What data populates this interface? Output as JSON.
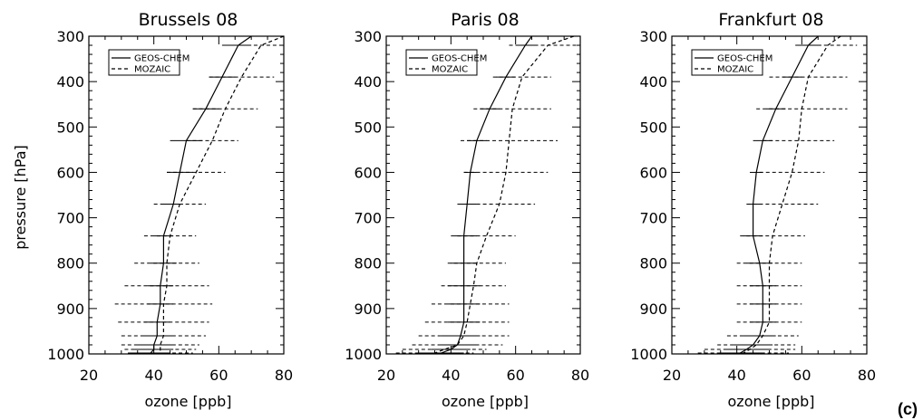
{
  "figure": {
    "panel_letter": "(c)",
    "ylabel": "pressure [hPa]",
    "xlabel": "ozone [ppb]"
  },
  "chart_data": [
    {
      "type": "line",
      "title": "Brussels   08",
      "xlabel": "ozone [ppb]",
      "ylabel": "pressure [hPa]",
      "xlim": [
        20,
        80
      ],
      "ylim": [
        1000,
        300
      ],
      "x_ticks": [
        20,
        40,
        60,
        80
      ],
      "y_ticks": [
        300,
        400,
        500,
        600,
        700,
        800,
        900,
        1000
      ],
      "legend_position": "top-left",
      "series": [
        {
          "name": "GEOS-CHEM",
          "style": "solid",
          "points": [
            [
              70,
              300
            ],
            [
              66,
              320
            ],
            [
              61,
              390
            ],
            [
              56,
              460
            ],
            [
              50,
              530
            ],
            [
              48,
              600
            ],
            [
              46,
              670
            ],
            [
              43,
              740
            ],
            [
              43,
              800
            ],
            [
              42,
              850
            ],
            [
              42,
              890
            ],
            [
              41,
              930
            ],
            [
              41,
              960
            ],
            [
              40,
              980
            ],
            [
              40,
              990
            ],
            [
              39,
              998
            ]
          ],
          "err_half_width": [
            5,
            4,
            4,
            4,
            5,
            4,
            3,
            3,
            4,
            4,
            4,
            4,
            5,
            6,
            6,
            6
          ]
        },
        {
          "name": "MOZAIC",
          "style": "dashed",
          "points": [
            [
              80,
              300
            ],
            [
              73,
              320
            ],
            [
              67,
              390
            ],
            [
              62,
              460
            ],
            [
              58,
              530
            ],
            [
              53,
              600
            ],
            [
              48,
              670
            ],
            [
              45,
              740
            ],
            [
              44,
              800
            ],
            [
              44,
              850
            ],
            [
              43,
              890
            ],
            [
              43,
              930
            ],
            [
              43,
              960
            ],
            [
              42,
              980
            ],
            [
              42,
              990
            ],
            [
              42,
              998
            ]
          ],
          "err_half_width": [
            8,
            12,
            10,
            10,
            8,
            9,
            8,
            8,
            10,
            13,
            15,
            14,
            13,
            12,
            11,
            10
          ]
        }
      ]
    },
    {
      "type": "line",
      "title": "Paris   08",
      "xlabel": "ozone [ppb]",
      "ylabel": "",
      "xlim": [
        20,
        80
      ],
      "ylim": [
        1000,
        300
      ],
      "x_ticks": [
        20,
        40,
        60,
        80
      ],
      "y_ticks": [
        300,
        400,
        500,
        600,
        700,
        800,
        900,
        1000
      ],
      "legend_position": "top-left",
      "series": [
        {
          "name": "GEOS-CHEM",
          "style": "solid",
          "points": [
            [
              65,
              300
            ],
            [
              63,
              320
            ],
            [
              57,
              390
            ],
            [
              52,
              460
            ],
            [
              48,
              530
            ],
            [
              46,
              600
            ],
            [
              45,
              670
            ],
            [
              44,
              740
            ],
            [
              44,
              800
            ],
            [
              44,
              850
            ],
            [
              44,
              890
            ],
            [
              44,
              930
            ],
            [
              43,
              960
            ],
            [
              42,
              980
            ],
            [
              40,
              990
            ],
            [
              37,
              998
            ]
          ],
          "err_half_width": [
            3,
            3,
            3,
            3,
            3,
            2,
            3,
            4,
            4,
            5,
            5,
            5,
            6,
            6,
            6,
            7
          ]
        },
        {
          "name": "MOZAIC",
          "style": "dashed",
          "points": [
            [
              78,
              300
            ],
            [
              70,
              320
            ],
            [
              62,
              390
            ],
            [
              59,
              460
            ],
            [
              58,
              530
            ],
            [
              57,
              600
            ],
            [
              55,
              670
            ],
            [
              51,
              740
            ],
            [
              48,
              800
            ],
            [
              47,
              850
            ],
            [
              46,
              890
            ],
            [
              45,
              930
            ],
            [
              44,
              960
            ],
            [
              42,
              980
            ],
            [
              38,
              990
            ],
            [
              35,
              998
            ]
          ],
          "err_half_width": [
            14,
            12,
            9,
            12,
            15,
            13,
            11,
            9,
            9,
            10,
            12,
            13,
            14,
            14,
            13,
            12
          ]
        }
      ]
    },
    {
      "type": "line",
      "title": "Frankfurt   08",
      "xlabel": "ozone [ppb]",
      "ylabel": "",
      "xlim": [
        20,
        80
      ],
      "ylim": [
        1000,
        300
      ],
      "x_ticks": [
        20,
        40,
        60,
        80
      ],
      "y_ticks": [
        300,
        400,
        500,
        600,
        700,
        800,
        900,
        1000
      ],
      "legend_position": "top-left",
      "series": [
        {
          "name": "GEOS-CHEM",
          "style": "solid",
          "points": [
            [
              65,
              300
            ],
            [
              62,
              320
            ],
            [
              57,
              390
            ],
            [
              52,
              460
            ],
            [
              48,
              530
            ],
            [
              46,
              600
            ],
            [
              45,
              670
            ],
            [
              45,
              740
            ],
            [
              47,
              800
            ],
            [
              48,
              850
            ],
            [
              48,
              890
            ],
            [
              48,
              930
            ],
            [
              47,
              960
            ],
            [
              45,
              980
            ],
            [
              43,
              990
            ],
            [
              41,
              998
            ]
          ],
          "err_half_width": [
            4,
            4,
            3,
            3,
            3,
            2,
            2,
            3,
            4,
            4,
            4,
            4,
            5,
            6,
            7,
            7
          ]
        },
        {
          "name": "MOZAIC",
          "style": "dashed",
          "points": [
            [
              72,
              300
            ],
            [
              68,
              320
            ],
            [
              62,
              390
            ],
            [
              60,
              460
            ],
            [
              59,
              530
            ],
            [
              57,
              600
            ],
            [
              54,
              670
            ],
            [
              51,
              740
            ],
            [
              50,
              800
            ],
            [
              50,
              850
            ],
            [
              50,
              890
            ],
            [
              50,
              930
            ],
            [
              48,
              960
            ],
            [
              46,
              980
            ],
            [
              44,
              990
            ],
            [
              42,
              998
            ]
          ],
          "err_half_width": [
            10,
            9,
            12,
            14,
            11,
            10,
            11,
            10,
            10,
            10,
            10,
            10,
            11,
            12,
            14,
            14
          ]
        }
      ]
    }
  ]
}
